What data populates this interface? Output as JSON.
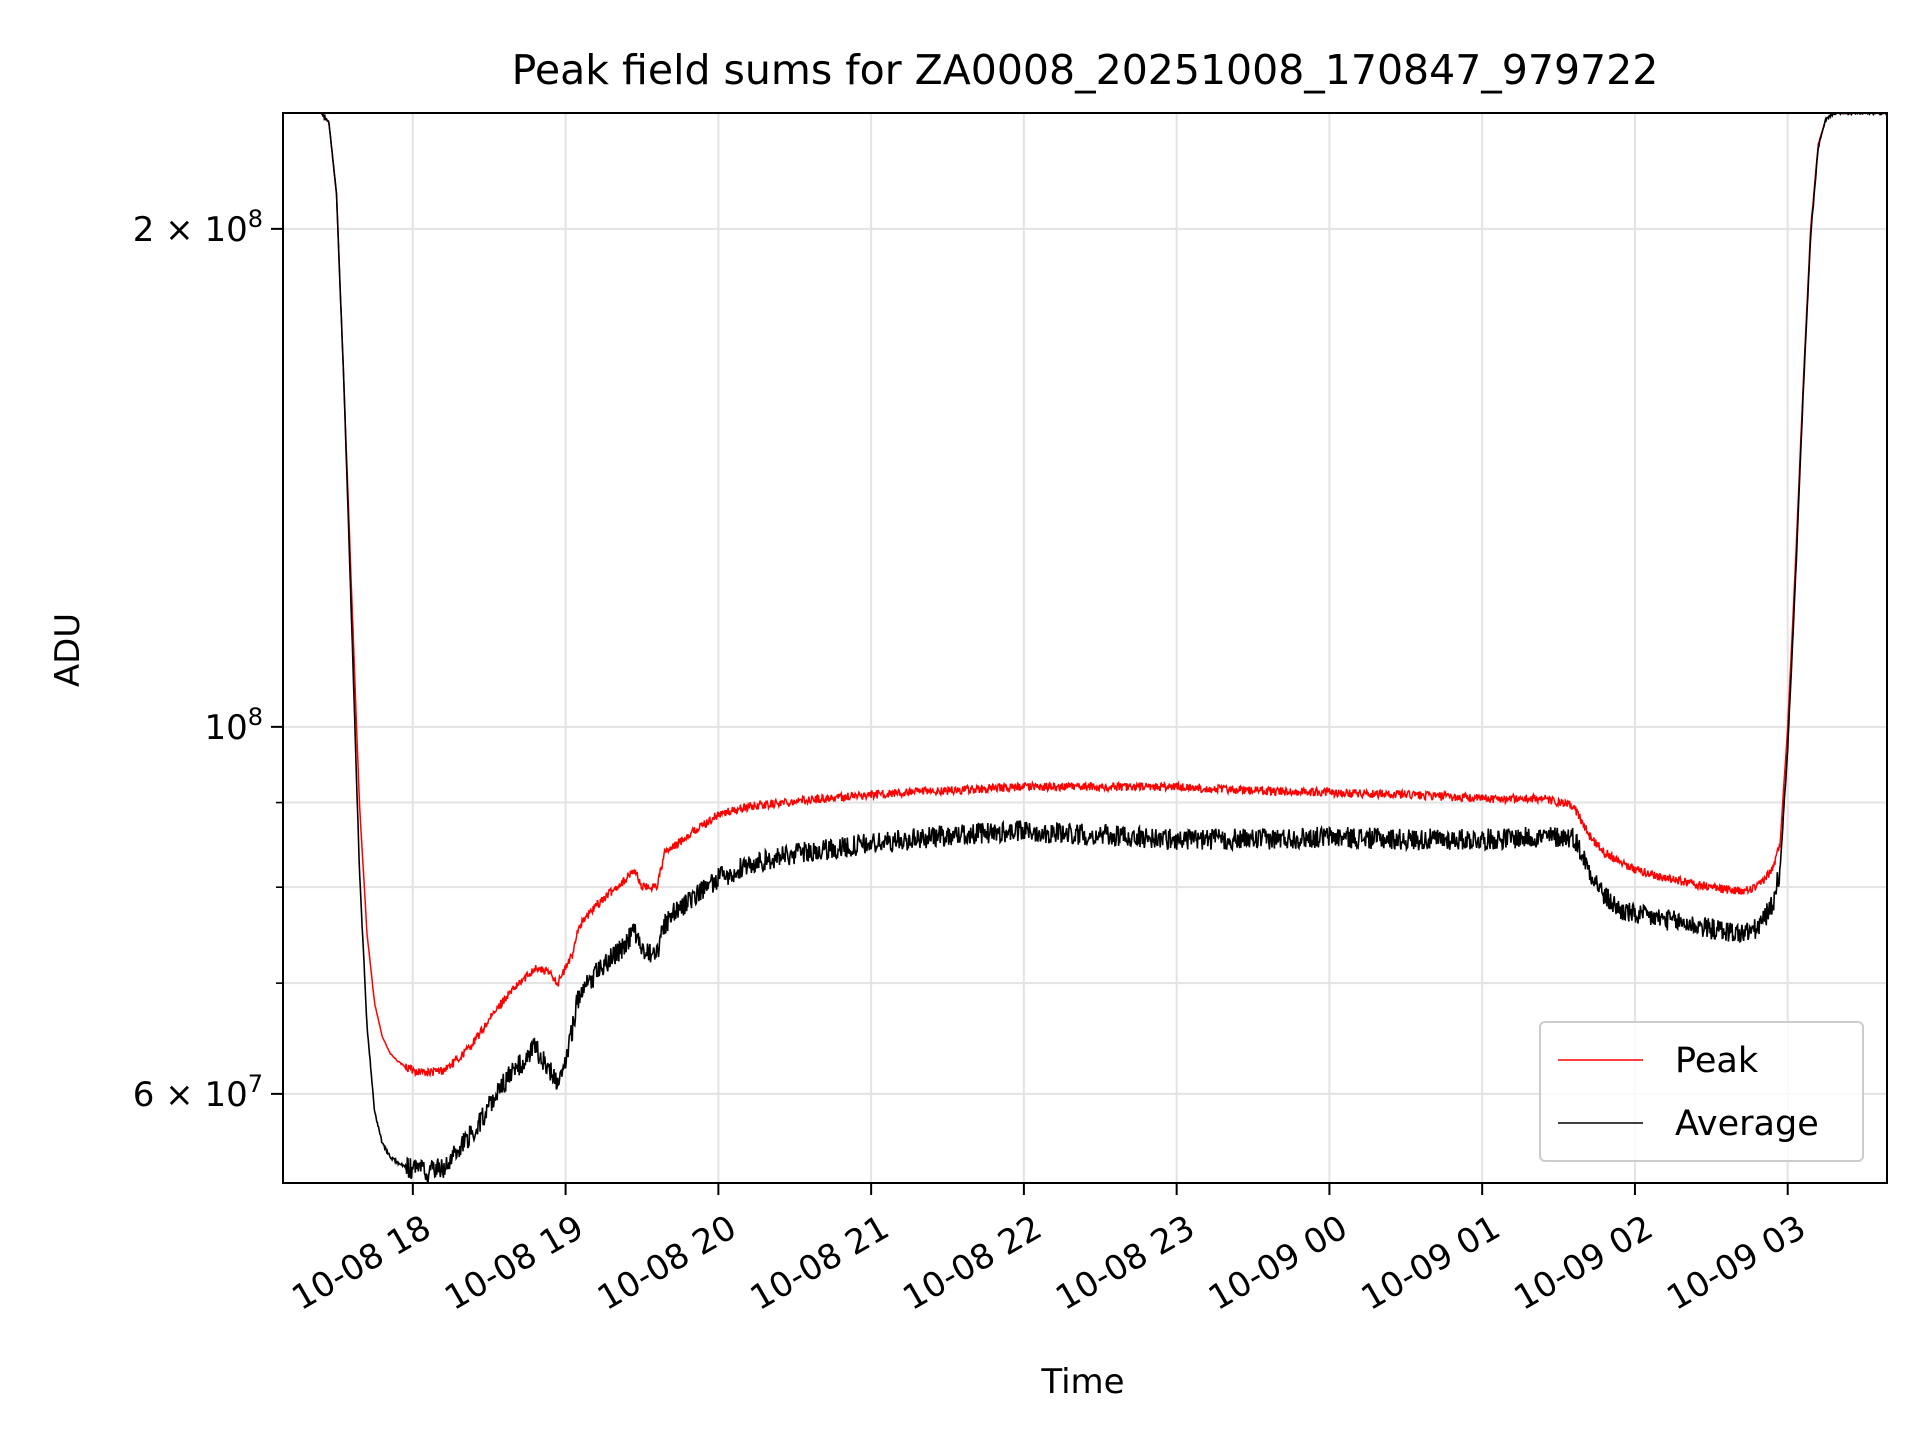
{
  "chart_data": {
    "type": "line",
    "title": "Peak field sums for ZA0008_20251008_170847_979722",
    "xlabel": "Time",
    "ylabel": "ADU",
    "yscale": "log",
    "ylim": [
      53000000,
      235000000
    ],
    "xlim": [
      -0.85,
      9.65
    ],
    "x_ticks": [
      {
        "value": 0,
        "label": "10-08 18"
      },
      {
        "value": 1,
        "label": "10-08 19"
      },
      {
        "value": 2,
        "label": "10-08 20"
      },
      {
        "value": 3,
        "label": "10-08 21"
      },
      {
        "value": 4,
        "label": "10-08 22"
      },
      {
        "value": 5,
        "label": "10-08 23"
      },
      {
        "value": 6,
        "label": "10-09 00"
      },
      {
        "value": 7,
        "label": "10-09 01"
      },
      {
        "value": 8,
        "label": "10-09 02"
      },
      {
        "value": 9,
        "label": "10-09 03"
      }
    ],
    "y_ticks": [
      {
        "value": 200000000,
        "mant": "2",
        "exp": "8"
      },
      {
        "value": 100000000,
        "mant": "",
        "exp": "8"
      },
      {
        "value": 60000000,
        "mant": "6",
        "exp": "7"
      }
    ],
    "y_minor_grid": [
      70000000,
      80000000,
      90000000
    ],
    "x_unit": "hours after 2025-10-08 18:00",
    "legend": {
      "position": "lower-right"
    },
    "series": [
      {
        "name": "Peak",
        "color": "#ff0000",
        "noise": 0.012,
        "x": [
          -0.6,
          -0.55,
          -0.5,
          -0.45,
          -0.4,
          -0.35,
          -0.3,
          -0.25,
          -0.2,
          -0.15,
          -0.1,
          -0.05,
          0,
          0.1,
          0.2,
          0.3,
          0.4,
          0.5,
          0.6,
          0.7,
          0.8,
          0.9,
          0.95,
          1.0,
          1.05,
          1.07,
          1.1,
          1.2,
          1.3,
          1.4,
          1.45,
          1.5,
          1.55,
          1.6,
          1.65,
          1.7,
          1.8,
          2.0,
          2.2,
          2.5,
          3.0,
          3.5,
          4.0,
          4.5,
          5.0,
          5.5,
          6.0,
          6.5,
          7.0,
          7.4,
          7.6,
          7.7,
          7.8,
          7.9,
          8.0,
          8.2,
          8.5,
          8.7,
          8.8,
          8.9,
          8.95,
          9.0,
          9.05,
          9.1,
          9.15,
          9.2,
          9.25,
          9.3,
          9.35,
          9.4,
          9.5,
          9.65
        ],
        "y": [
          235000000,
          232000000,
          210000000,
          160000000,
          120000000,
          90000000,
          75000000,
          68000000,
          65000000,
          63500000,
          62800000,
          62300000,
          62000000,
          61800000,
          62000000,
          63000000,
          64500000,
          66500000,
          68500000,
          70000000,
          71500000,
          71000000,
          70000000,
          71500000,
          73000000,
          75000000,
          76000000,
          78000000,
          79500000,
          81000000,
          82000000,
          80000000,
          80000000,
          80200000,
          84000000,
          84500000,
          86000000,
          88500000,
          89500000,
          90200000,
          91000000,
          91500000,
          92000000,
          92000000,
          92000000,
          91500000,
          91300000,
          91000000,
          90500000,
          90500000,
          89500000,
          86000000,
          84000000,
          83000000,
          82000000,
          81000000,
          80000000,
          79500000,
          80000000,
          82000000,
          85000000,
          100000000,
          125000000,
          160000000,
          200000000,
          225000000,
          233000000,
          235000000,
          235000000,
          235000000,
          235000000,
          235000000
        ]
      },
      {
        "name": "Average",
        "color": "#000000",
        "noise": 0.03,
        "x": [
          -0.6,
          -0.55,
          -0.5,
          -0.45,
          -0.4,
          -0.35,
          -0.3,
          -0.25,
          -0.2,
          -0.15,
          -0.1,
          -0.05,
          0,
          0.1,
          0.2,
          0.3,
          0.4,
          0.5,
          0.6,
          0.7,
          0.8,
          0.9,
          0.95,
          1.0,
          1.05,
          1.07,
          1.1,
          1.2,
          1.3,
          1.4,
          1.45,
          1.5,
          1.55,
          1.6,
          1.65,
          1.7,
          1.8,
          2.0,
          2.2,
          2.5,
          3.0,
          3.5,
          4.0,
          4.5,
          5.0,
          5.5,
          6.0,
          6.5,
          7.0,
          7.4,
          7.6,
          7.7,
          7.8,
          7.9,
          8.0,
          8.2,
          8.5,
          8.7,
          8.8,
          8.9,
          8.95,
          9.0,
          9.05,
          9.1,
          9.15,
          9.2,
          9.25,
          9.3,
          9.35,
          9.4,
          9.5,
          9.65
        ],
        "y": [
          235000000,
          232000000,
          210000000,
          160000000,
          115000000,
          82000000,
          66000000,
          58500000,
          56000000,
          55000000,
          54500000,
          54200000,
          54000000,
          53800000,
          54200000,
          55500000,
          57000000,
          59000000,
          61000000,
          62500000,
          64000000,
          62000000,
          61000000,
          63000000,
          66000000,
          68000000,
          69000000,
          71000000,
          72500000,
          74000000,
          75500000,
          73000000,
          73000000,
          73200000,
          76000000,
          77000000,
          78500000,
          81000000,
          82500000,
          83800000,
          85000000,
          86000000,
          86500000,
          86000000,
          85500000,
          85500000,
          85800000,
          85500000,
          85500000,
          85800000,
          85800000,
          82000000,
          79000000,
          77500000,
          77000000,
          76500000,
          75500000,
          75000000,
          75500000,
          78000000,
          82000000,
          97000000,
          122000000,
          158000000,
          198000000,
          224000000,
          233000000,
          235000000,
          235000000,
          235000000,
          235000000,
          235000000
        ]
      }
    ]
  }
}
